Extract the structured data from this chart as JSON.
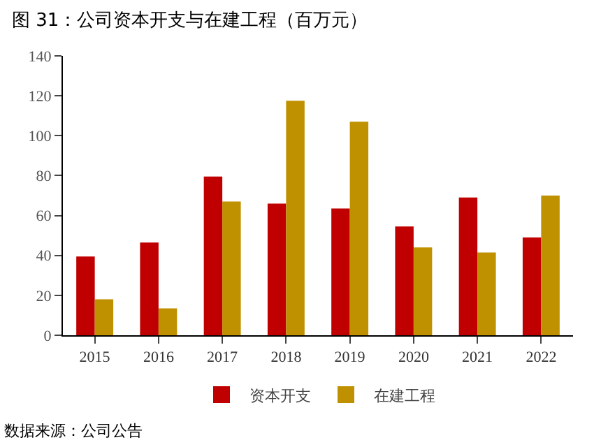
{
  "chart_data": {
    "type": "bar",
    "title": "图 31：公司资本开支与在建工程（百万元）",
    "categories": [
      "2015",
      "2016",
      "2017",
      "2018",
      "2019",
      "2020",
      "2021",
      "2022"
    ],
    "series": [
      {
        "name": "资本开支",
        "color": "#c00000",
        "values": [
          39.5,
          46.5,
          79.5,
          66,
          63.5,
          54.5,
          69,
          49
        ]
      },
      {
        "name": "在建工程",
        "color": "#bf9000",
        "values": [
          18,
          13.5,
          67,
          117.5,
          107,
          44,
          41.5,
          70
        ]
      }
    ],
    "ylim": [
      0,
      140
    ],
    "yticks": [
      0,
      20,
      40,
      60,
      80,
      100,
      120,
      140
    ],
    "grid": false,
    "legend": "bottom",
    "annotations": [
      "数据来源：公司公告"
    ]
  }
}
